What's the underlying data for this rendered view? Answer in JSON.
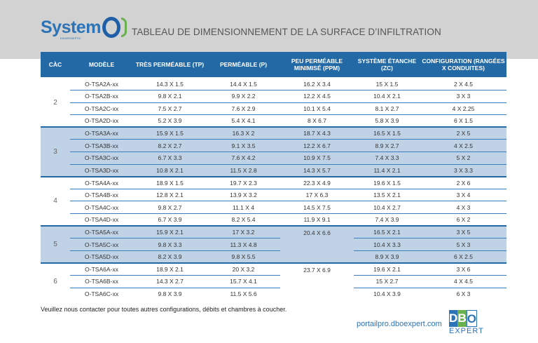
{
  "header": {
    "logo_text": "System",
    "logo_subtext": "ENVIROSEPTIC",
    "title": "TABLEAU DE DIMENSIONNEMENT DE LA SURFACE D’INFILTRATION"
  },
  "table": {
    "columns": [
      "CÀC",
      "MODÈLE",
      "TRÈS PERMÉABLE (TP)",
      "PERMÉABLE (P)",
      "PEU PERMÉABLE MINIMISÉ (PPM)",
      "SYSTÈME ÉTANCHE (ZC)",
      "CONFIGURATION (RANGÉES X CONDUITES)"
    ],
    "groups": [
      {
        "cac": "2",
        "shaded": false,
        "rows": [
          [
            "O-TSA2A-xx",
            "14.3 X 1.5",
            "14.4 X 1.5",
            "16.2 X 3.4",
            "15 X 1.5",
            "2 X 4.5"
          ],
          [
            "O-TSA2B-xx",
            "9.8 X 2.1",
            "9.9 X 2.2",
            "12.2 X 4.5",
            "10.4 X 2.1",
            "3 X 3"
          ],
          [
            "O-TSA2C-xx",
            "7.5 X 2.7",
            "7.6 X 2.9",
            "10.1 X 5.4",
            "8.1 X 2.7",
            "4 X 2.25"
          ],
          [
            "O-TSA2D-xx",
            "5.2 X 3.9",
            "5.4 X 4.1",
            "8 X 6.7",
            "5.8 X 3.9",
            "6 X 1.5"
          ]
        ]
      },
      {
        "cac": "3",
        "shaded": true,
        "rows": [
          [
            "O-TSA3A-xx",
            "15.9 X 1.5",
            "16.3 X 2",
            "18.7 X 4.3",
            "16.5 X 1.5",
            "2 X 5"
          ],
          [
            "O-TSA3B-xx",
            "8.2 X 2.7",
            "9.1 X 3.5",
            "12.2 X 6.7",
            "8.9 X 2.7",
            "4 X 2.5"
          ],
          [
            "O-TSA3C-xx",
            "6.7 X 3.3",
            "7.6 X 4.2",
            "10.9 X 7.5",
            "7.4 X 3.3",
            "5 X 2"
          ],
          [
            "O-TSA3D-xx",
            "10.8 X 2.1",
            "11.5 X 2.8",
            "14.3 X 5.7",
            "11.4 X 2.1",
            "3 X 3.3"
          ]
        ]
      },
      {
        "cac": "4",
        "shaded": false,
        "rows": [
          [
            "O-TSA4A-xx",
            "18.9 X 1.5",
            "19.7 X 2.3",
            "22.3 X 4.9",
            "19.6 X 1.5",
            "2 X 6"
          ],
          [
            "O-TSA4B-xx",
            "12.8 X 2.1",
            "13.9 X 3.2",
            "17 X 6.3",
            "13.5 X 2.1",
            "3 X 4"
          ],
          [
            "O-TSA4C-xx",
            "9.8 X 2.7",
            "11.1 X 4",
            "14.5 X 7.5",
            "10.4 X 2.7",
            "4 X 3"
          ],
          [
            "O-TSA4D-xx",
            "6.7 X 3.9",
            "8.2 X 5.4",
            "11.9 X 9.1",
            "7.4 X 3.9",
            "6 X 2"
          ]
        ]
      },
      {
        "cac": "5",
        "shaded": true,
        "ppm_merged": "20.4 X 6.6",
        "rows": [
          [
            "O-TSA5A-xx",
            "15.9 X 2.1",
            "17 X 3.2",
            "16.5 X 2.1",
            "3 X 5"
          ],
          [
            "O-TSA5C-xx",
            "9.8 X 3.3",
            "11.3 X 4.8",
            "10.4 X 3.3",
            "5 X 3"
          ],
          [
            "O-TSA5D-xx",
            "8.2 X 3.9",
            "9.8 X 5.5",
            "8.9 X 3.9",
            "6 X 2.5"
          ]
        ]
      },
      {
        "cac": "6",
        "shaded": false,
        "ppm_merged": "23.7 X 6.9",
        "rows": [
          [
            "O-TSA6A-xx",
            "18.9 X 2.1",
            "20 X 3.2",
            "19.6 X 2.1",
            "3 X 6"
          ],
          [
            "O-TSA6B-xx",
            "14.3 X 2.7",
            "15.7 X 4.1",
            "15 X 2.7",
            "4 X 4.5"
          ],
          [
            "O-TSA6C-xx",
            "9.8 X 3.9",
            "11.5 X 5.6",
            "10.4 X 3.9",
            "6 X 3"
          ]
        ]
      }
    ]
  },
  "footer": {
    "note": "Veuillez nous contacter pour toutes autres configurations, débits et chambres à coucher.",
    "url": "portailpro.dboexpert.com",
    "brand_letters": [
      "D",
      "B",
      "O"
    ],
    "brand_word": "EXPERT",
    "brand_colors": [
      "#2c73b7",
      "#6ab04c",
      "#2c73b7"
    ]
  }
}
